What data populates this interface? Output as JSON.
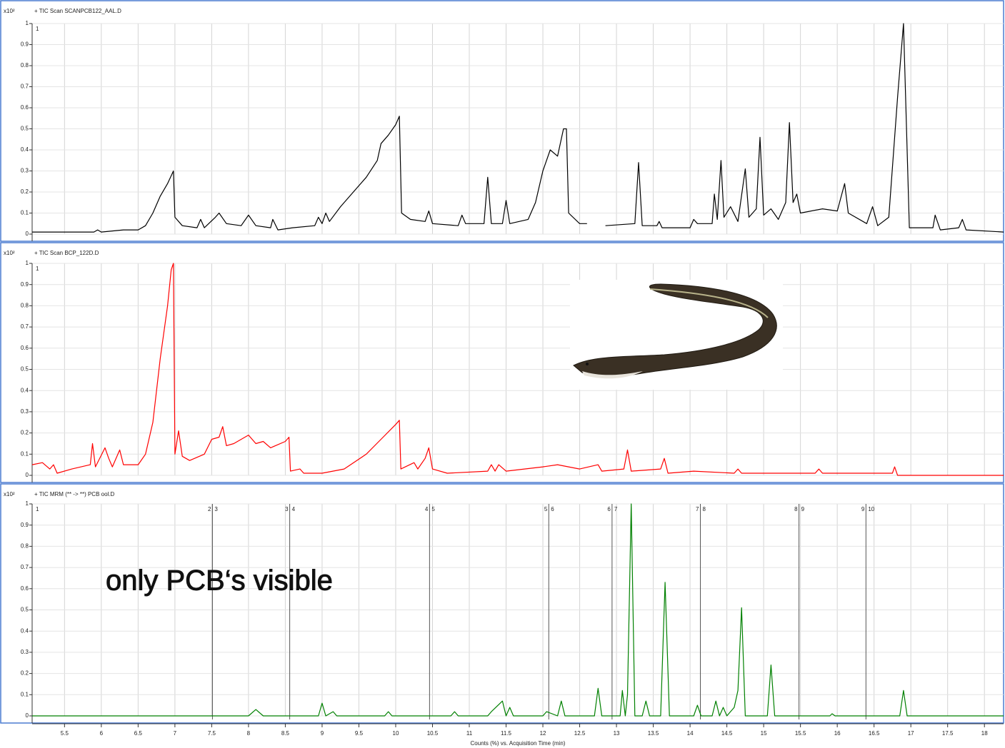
{
  "chart_data": [
    {
      "type": "line",
      "title": "+ TIC Scan SCANPCB122_AAL.D",
      "y_multiplier": "x10²",
      "corner_label": "1",
      "color": "#000000",
      "xlim": [
        5.06,
        18.26
      ],
      "ylim": [
        0,
        1
      ],
      "yticks": [
        0,
        0.1,
        0.2,
        0.3,
        0.4,
        0.5,
        0.6,
        0.7,
        0.8,
        0.9,
        1
      ],
      "grid": true,
      "x": [
        5.06,
        5.9,
        5.95,
        6.0,
        6.3,
        6.5,
        6.6,
        6.7,
        6.8,
        6.9,
        6.98,
        7.0,
        7.1,
        7.3,
        7.35,
        7.4,
        7.55,
        7.6,
        7.7,
        7.9,
        8.0,
        8.1,
        8.3,
        8.33,
        8.4,
        8.6,
        8.9,
        8.95,
        9.0,
        9.05,
        9.1,
        9.25,
        9.4,
        9.6,
        9.75,
        9.8,
        9.9,
        10.0,
        10.05,
        10.08,
        10.2,
        10.4,
        10.45,
        10.5,
        10.85,
        10.9,
        10.95,
        11.2,
        11.25,
        11.3,
        11.45,
        11.5,
        11.55,
        11.8,
        11.9,
        12.0,
        12.1,
        12.2,
        12.28,
        12.32,
        12.35,
        12.5,
        12.6,
        12.7,
        12.85,
        13.25,
        13.3,
        13.35,
        13.55,
        13.58,
        13.62,
        14.0,
        14.05,
        14.1,
        14.3,
        14.33,
        14.37,
        14.42,
        14.46,
        14.55,
        14.65,
        14.75,
        14.8,
        14.9,
        14.95,
        15.0,
        15.1,
        15.2,
        15.3,
        15.35,
        15.4,
        15.45,
        15.5,
        15.8,
        16.0,
        16.1,
        16.15,
        16.4,
        16.48,
        16.55,
        16.7,
        16.82,
        16.9,
        16.98,
        17.3,
        17.33,
        17.4,
        17.65,
        17.7,
        17.75,
        18.26
      ],
      "values": [
        0.01,
        0.01,
        0.02,
        0.01,
        0.02,
        0.02,
        0.04,
        0.1,
        0.18,
        0.24,
        0.3,
        0.08,
        0.04,
        0.03,
        0.07,
        0.03,
        0.08,
        0.1,
        0.05,
        0.04,
        0.09,
        0.04,
        0.03,
        0.07,
        0.02,
        0.03,
        0.04,
        0.08,
        0.05,
        0.1,
        0.06,
        0.13,
        0.19,
        0.27,
        0.35,
        0.43,
        0.47,
        0.52,
        0.56,
        0.1,
        0.07,
        0.06,
        0.11,
        0.05,
        0.04,
        0.09,
        0.05,
        0.05,
        0.27,
        0.05,
        0.05,
        0.16,
        0.05,
        0.07,
        0.15,
        0.3,
        0.4,
        0.37,
        0.5,
        0.5,
        0.1,
        0.05,
        0.05,
        null,
        0.04,
        0.05,
        0.34,
        0.04,
        0.04,
        0.06,
        0.03,
        0.03,
        0.07,
        0.05,
        0.05,
        0.19,
        0.07,
        0.35,
        0.08,
        0.13,
        0.06,
        0.31,
        0.08,
        0.12,
        0.46,
        0.09,
        0.12,
        0.07,
        0.15,
        0.53,
        0.15,
        0.19,
        0.1,
        0.12,
        0.11,
        0.24,
        0.1,
        0.05,
        0.13,
        0.04,
        0.08,
        0.65,
        1.0,
        0.03,
        0.03,
        0.09,
        0.02,
        0.03,
        0.07,
        0.02,
        0.01
      ]
    },
    {
      "type": "line",
      "title": "+ TIC Scan BCP_122D.D",
      "y_multiplier": "x10²",
      "corner_label": "1",
      "color": "#ff0000",
      "xlim": [
        5.06,
        18.26
      ],
      "ylim": [
        0,
        1
      ],
      "yticks": [
        0,
        0.1,
        0.2,
        0.3,
        0.4,
        0.5,
        0.6,
        0.7,
        0.8,
        0.9,
        1
      ],
      "grid": true,
      "x": [
        5.06,
        5.2,
        5.3,
        5.35,
        5.4,
        5.6,
        5.85,
        5.88,
        5.92,
        6.05,
        6.1,
        6.15,
        6.25,
        6.3,
        6.5,
        6.6,
        6.7,
        6.8,
        6.9,
        6.95,
        6.98,
        7.0,
        7.05,
        7.1,
        7.2,
        7.4,
        7.5,
        7.6,
        7.65,
        7.7,
        7.8,
        8.0,
        8.1,
        8.2,
        8.3,
        8.5,
        8.55,
        8.57,
        8.7,
        8.75,
        9.0,
        9.3,
        9.6,
        9.8,
        10.0,
        10.05,
        10.07,
        10.25,
        10.3,
        10.4,
        10.45,
        10.5,
        10.7,
        11.25,
        11.3,
        11.35,
        11.4,
        11.5,
        12.0,
        12.2,
        12.5,
        12.75,
        12.8,
        13.1,
        13.15,
        13.2,
        13.6,
        13.65,
        13.7,
        14.05,
        14.6,
        14.65,
        14.7,
        15.7,
        15.75,
        15.8,
        16.75,
        16.78,
        16.82,
        18.26
      ],
      "values": [
        0.05,
        0.06,
        0.03,
        0.05,
        0.01,
        0.03,
        0.05,
        0.15,
        0.04,
        0.13,
        0.08,
        0.04,
        0.12,
        0.05,
        0.05,
        0.1,
        0.25,
        0.55,
        0.8,
        0.97,
        1.0,
        0.1,
        0.21,
        0.09,
        0.07,
        0.1,
        0.17,
        0.18,
        0.23,
        0.14,
        0.15,
        0.19,
        0.15,
        0.16,
        0.13,
        0.16,
        0.18,
        0.02,
        0.03,
        0.01,
        0.01,
        0.03,
        0.1,
        0.17,
        0.24,
        0.26,
        0.03,
        0.06,
        0.03,
        0.08,
        0.13,
        0.03,
        0.01,
        0.02,
        0.05,
        0.02,
        0.05,
        0.02,
        0.04,
        0.05,
        0.03,
        0.05,
        0.02,
        0.03,
        0.12,
        0.02,
        0.03,
        0.08,
        0.01,
        0.02,
        0.01,
        0.03,
        0.01,
        0.01,
        0.03,
        0.01,
        0.01,
        0.04,
        0,
        0
      ]
    },
    {
      "type": "line",
      "title": "+ TIC MRM (** -> **) PCB ool.D",
      "y_multiplier": "x10²",
      "corner_label": "1",
      "color": "#008000",
      "xlim": [
        5.06,
        18.26
      ],
      "ylim": [
        0,
        1
      ],
      "yticks": [
        0,
        0.1,
        0.2,
        0.3,
        0.4,
        0.5,
        0.6,
        0.7,
        0.8,
        0.9,
        1
      ],
      "grid": true,
      "xticks": [
        5.5,
        6,
        6.5,
        7,
        7.5,
        8,
        8.5,
        9,
        9.5,
        10,
        10.5,
        11,
        11.5,
        12,
        12.5,
        13,
        13.5,
        14,
        14.5,
        15,
        15.5,
        16,
        16.5,
        17,
        17.5,
        18
      ],
      "x_label": "Counts (%) vs. Acquisition Time (min)",
      "annotation": "only PCB‘s visible",
      "segments": [
        {
          "x": 7.51,
          "left": "2",
          "right": "3"
        },
        {
          "x": 8.56,
          "left": "3",
          "right": "4"
        },
        {
          "x": 10.46,
          "left": "4",
          "right": "5"
        },
        {
          "x": 12.08,
          "left": "5",
          "right": "6"
        },
        {
          "x": 12.94,
          "left": "6",
          "right": "7"
        },
        {
          "x": 14.14,
          "left": "7",
          "right": "8"
        },
        {
          "x": 15.48,
          "left": "8",
          "right": "9"
        },
        {
          "x": 16.39,
          "left": "9",
          "right": "10"
        }
      ],
      "x": [
        5.06,
        8.0,
        8.1,
        8.2,
        8.95,
        9.0,
        9.05,
        9.15,
        9.2,
        9.85,
        9.9,
        9.95,
        10.75,
        10.8,
        10.85,
        11.25,
        11.3,
        11.45,
        11.5,
        11.55,
        11.6,
        12.0,
        12.05,
        12.2,
        12.25,
        12.3,
        12.7,
        12.75,
        12.8,
        13.05,
        13.08,
        13.12,
        13.15,
        13.2,
        13.25,
        13.35,
        13.4,
        13.45,
        13.6,
        13.66,
        13.72,
        14.05,
        14.1,
        14.15,
        14.3,
        14.35,
        14.4,
        14.45,
        14.5,
        14.6,
        14.65,
        14.7,
        14.75,
        15.05,
        15.1,
        15.15,
        15.9,
        15.93,
        15.97,
        16.85,
        16.9,
        16.95,
        18.26
      ],
      "values": [
        0,
        0,
        0.03,
        0,
        0,
        0.06,
        0,
        0.02,
        0,
        0,
        0.02,
        0,
        0,
        0.02,
        0,
        0,
        0.02,
        0.07,
        0,
        0.04,
        0,
        0,
        0.02,
        0,
        0.07,
        0,
        0,
        0.13,
        0,
        0,
        0.12,
        0,
        0.1,
        1.0,
        0,
        0,
        0.07,
        0,
        0,
        0.63,
        0,
        0,
        0.05,
        0,
        0,
        0.07,
        0,
        0.04,
        0,
        0.04,
        0.12,
        0.51,
        0,
        0,
        0.24,
        0,
        0,
        0.01,
        0,
        0,
        0.12,
        0,
        0
      ]
    }
  ]
}
